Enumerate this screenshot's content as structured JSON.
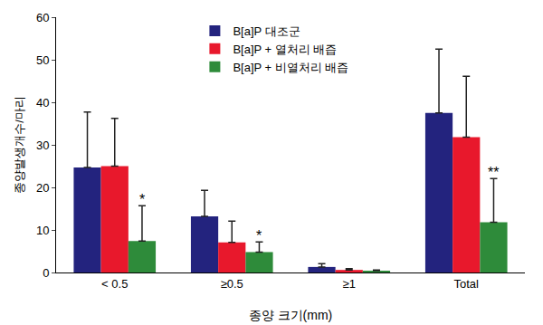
{
  "chart_data": {
    "type": "bar",
    "categories": [
      "< 0.5",
      "≥0.5",
      "≥1",
      "Total"
    ],
    "x_label": "종양 크기(mm)",
    "y_label": "종양발생개수/마리",
    "series": [
      {
        "name": "B[a]P 대조군",
        "color": "#23237e",
        "values": [
          24.7,
          13.2,
          1.3,
          37.5
        ],
        "errors": [
          13.0,
          6.1,
          0.8,
          15.0
        ]
      },
      {
        "name": "B[a]P + 열처리 배즙",
        "color": "#e8182c",
        "values": [
          25.0,
          7.1,
          0.6,
          31.8
        ],
        "errors": [
          11.2,
          5.0,
          0.3,
          14.3
        ]
      },
      {
        "name": "B[a]P + 비열처리 배즙",
        "color": "#2e8b3a",
        "values": [
          7.4,
          4.8,
          0.4,
          11.8
        ],
        "errors": [
          8.3,
          2.4,
          0.2,
          10.3
        ]
      }
    ],
    "annotations": [
      {
        "category": "< 0.5",
        "series": "B[a]P + 비열처리 배즙",
        "text": "*"
      },
      {
        "category": "≥0.5",
        "series": "B[a]P + 비열처리 배즙",
        "text": "*"
      },
      {
        "category": "Total",
        "series": "B[a]P + 비열처리 배즙",
        "text": "**"
      }
    ],
    "ylim": [
      0,
      60
    ],
    "yticks": [
      0,
      10,
      20,
      30,
      40,
      50,
      60
    ],
    "grid": false,
    "legend": "top"
  }
}
